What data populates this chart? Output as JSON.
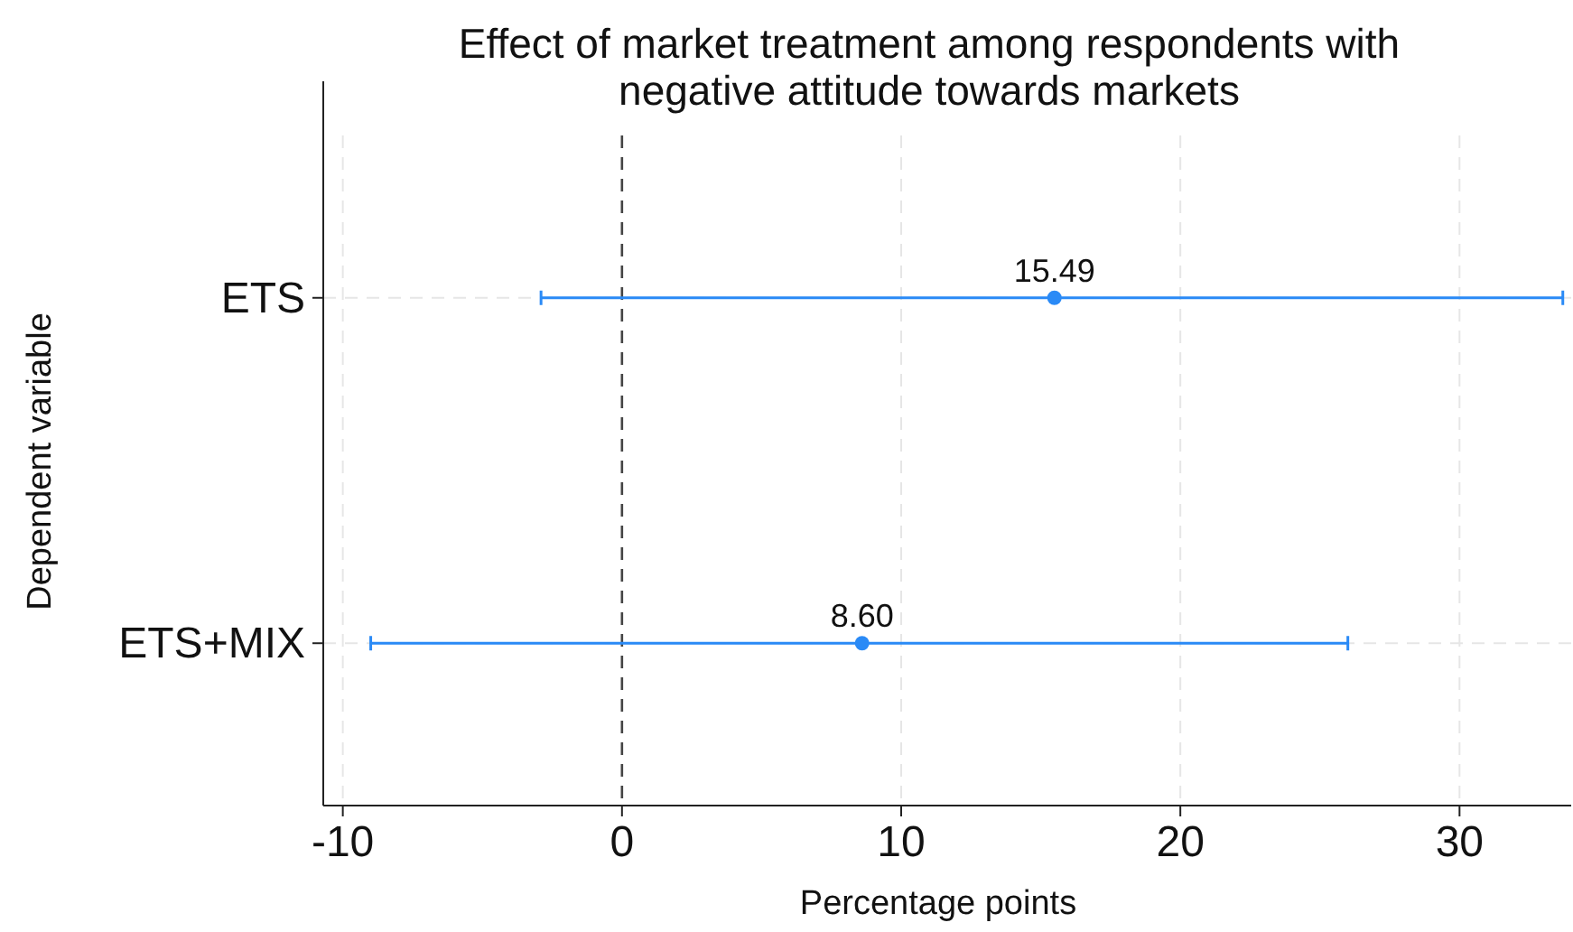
{
  "chart_data": {
    "type": "scatter",
    "orientation": "horizontal",
    "title": "Effect of market treatment among respondents with negative attitude towards markets",
    "xlabel": "Percentage points",
    "ylabel": "Dependent variable",
    "categories": [
      "ETS",
      "ETS+MIX"
    ],
    "values": [
      15.49,
      8.6
    ],
    "value_labels": [
      "15.49",
      "8.60"
    ],
    "errors": [
      [
        -2.9,
        33.7
      ],
      [
        -9.0,
        26.0
      ]
    ],
    "color": "#2a8af6",
    "marker": "circle",
    "xlim": [
      -10.7,
      34
    ],
    "xticks": [
      -10,
      0,
      10,
      20,
      30
    ],
    "grid": true,
    "ref_lines": [
      {
        "axis": "x",
        "value": 0,
        "color": "#444444",
        "line_style": "dashed"
      }
    ]
  }
}
